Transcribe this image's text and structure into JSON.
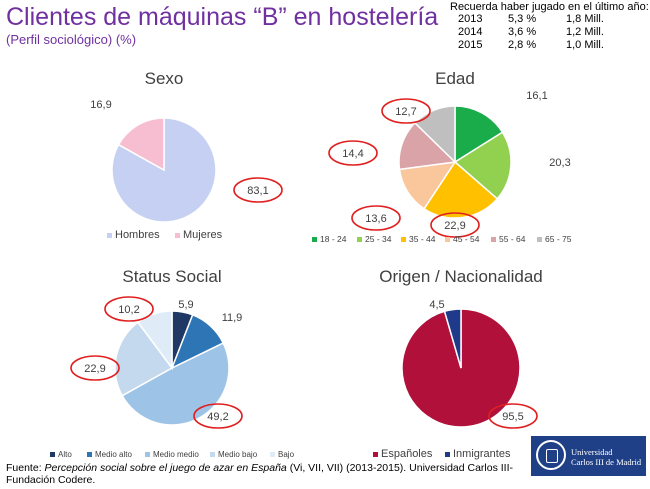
{
  "header": {
    "title": "Clientes de máquinas “B” en hostelería",
    "subtitle": "(Perfil sociológico) (%)"
  },
  "stats": {
    "heading": "Recuerda haber jugado en el último año:",
    "rows": [
      {
        "year": "2013",
        "pct": "5,3 %",
        "amount": "1,8 Mill."
      },
      {
        "year": "2014",
        "pct": "3,6 %",
        "amount": "1,2 Mill."
      },
      {
        "year": "2015",
        "pct": "2,8 %",
        "amount": "1,0 Mill."
      }
    ]
  },
  "chart_data": [
    {
      "type": "pie",
      "title": "Sexo",
      "categories": [
        "Hombres",
        "Mujeres"
      ],
      "values": [
        83.1,
        16.9
      ],
      "labels": [
        "83,1",
        "16,9"
      ],
      "colors": [
        "#c5d0f3",
        "#f7bdd0"
      ],
      "highlighted": [
        "83,1"
      ],
      "legend": "bottom"
    },
    {
      "type": "pie",
      "title": "Edad",
      "categories": [
        "18 - 24",
        "25 - 34",
        "35 - 44",
        "45 - 54",
        "55 - 64",
        "65 - 75"
      ],
      "values": [
        16.1,
        20.3,
        22.9,
        13.6,
        14.4,
        12.7
      ],
      "labels": [
        "16,1",
        "20,3",
        "22,9",
        "13,6",
        "14,4",
        "12,7"
      ],
      "colors": [
        "#1aab4b",
        "#92d050",
        "#ffc000",
        "#fac69c",
        "#d9a3a8",
        "#bfbfbf"
      ],
      "highlighted": [
        "12,7",
        "14,4",
        "13,6",
        "22,9"
      ],
      "legend": "bottom"
    },
    {
      "type": "pie",
      "title": "Status Social",
      "categories": [
        "Alto",
        "Medio alto",
        "Medio medio",
        "Medio bajo",
        "Bajo"
      ],
      "values": [
        5.9,
        11.9,
        49.2,
        22.9,
        10.2
      ],
      "labels": [
        "5,9",
        "11,9",
        "49,2",
        "22,9",
        "10,2"
      ],
      "colors": [
        "#1f3864",
        "#2e75b6",
        "#9dc3e6",
        "#c5d9ee",
        "#dfebf7"
      ],
      "highlighted": [
        "10,2",
        "22,9",
        "49,2"
      ],
      "legend": "bottom"
    },
    {
      "type": "pie",
      "title": "Origen / Nacionalidad",
      "categories": [
        "Españoles",
        "Inmigrantes"
      ],
      "values": [
        95.5,
        4.5
      ],
      "labels": [
        "95,5",
        "4,5"
      ],
      "colors": [
        "#b0103a",
        "#1f3a8a"
      ],
      "highlighted": [
        "95,5"
      ],
      "legend": "bottom"
    }
  ],
  "source": {
    "prefix": "Fuente: ",
    "title": "Percepción social sobre el juego de azar en España",
    "suffix": " (Vi, VII, VII) (2013-2015). Universidad Carlos III-Fundación Codere."
  },
  "logo": {
    "line1": "Universidad",
    "line2": "Carlos III de Madrid"
  }
}
